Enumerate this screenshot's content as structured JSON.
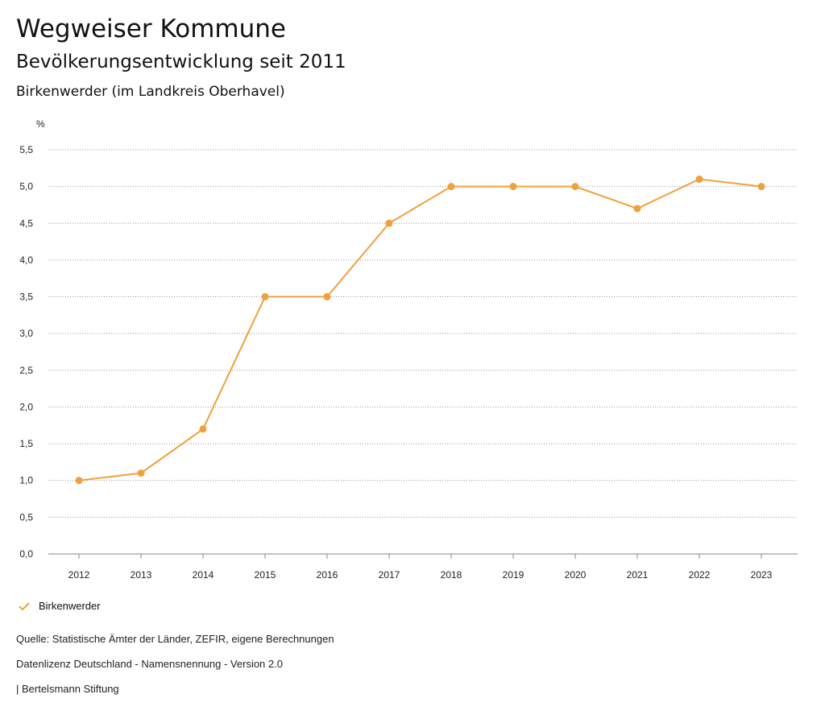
{
  "header": {
    "title": "Wegweiser Kommune",
    "subtitle": "Bevölkerungsentwicklung seit 2011",
    "region": "Birkenwerder (im Landkreis Oberhavel)"
  },
  "chart_data": {
    "type": "line",
    "y_unit": "%",
    "categories": [
      "2012",
      "2013",
      "2014",
      "2015",
      "2016",
      "2017",
      "2018",
      "2019",
      "2020",
      "2021",
      "2022",
      "2023"
    ],
    "ylim": [
      0,
      5.5
    ],
    "yticks": [
      "0,0",
      "0,5",
      "1,0",
      "1,5",
      "2,0",
      "2,5",
      "3,0",
      "3,5",
      "4,0",
      "4,5",
      "5,0",
      "5,5"
    ],
    "grid": true,
    "series": [
      {
        "name": "Birkenwerder",
        "color": "#f0a03c",
        "values": [
          1.0,
          1.1,
          1.7,
          3.5,
          3.5,
          4.5,
          5.0,
          5.0,
          5.0,
          4.7,
          5.1,
          5.0
        ]
      }
    ],
    "legend_position": "bottom-left"
  },
  "legend": {
    "label": "Birkenwerder",
    "icon": "check-icon"
  },
  "footer": {
    "source": "Quelle: Statistische Ämter der Länder, ZEFIR, eigene Berechnungen",
    "license": "Datenlizenz Deutschland - Namensnennung - Version 2.0",
    "publisher": "| Bertelsmann Stiftung"
  }
}
